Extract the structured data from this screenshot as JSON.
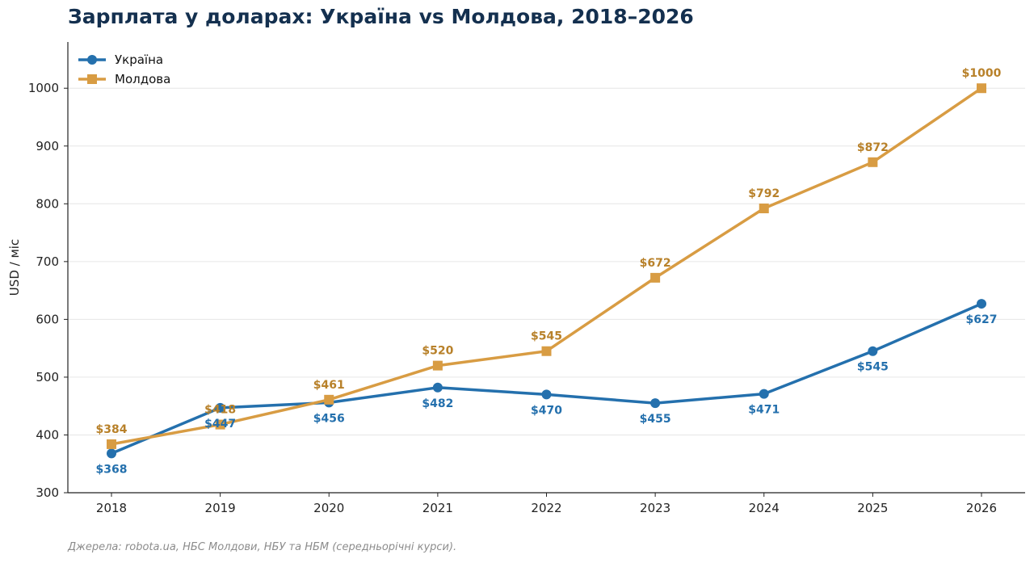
{
  "chart_data": {
    "type": "line",
    "title": "Зарплата у доларах: Україна vs Молдова, 2018–2026",
    "xlabel": "",
    "ylabel": "USD / міс",
    "x": [
      "2018",
      "2019",
      "2020",
      "2021",
      "2022",
      "2023",
      "2024",
      "2025",
      "2026"
    ],
    "ylim": [
      300,
      1080
    ],
    "yticks": [
      300,
      400,
      500,
      600,
      700,
      800,
      900,
      1000
    ],
    "grid": "horizontal",
    "legend": "top-left",
    "series": [
      {
        "name": "Україна",
        "color": "#2470ad",
        "marker": "circle",
        "label_position": "below",
        "values": [
          368,
          447,
          456,
          482,
          470,
          455,
          471,
          545,
          627
        ],
        "labels": [
          "$368",
          "$447",
          "$456",
          "$482",
          "$470",
          "$455",
          "$471",
          "$545",
          "$627"
        ]
      },
      {
        "name": "Молдова",
        "color": "#d89c43",
        "marker": "square",
        "label_color": "#b8812a",
        "label_position": "above",
        "values": [
          384,
          418,
          461,
          520,
          545,
          672,
          792,
          872,
          1000
        ],
        "labels": [
          "$384",
          "$418",
          "$461",
          "$520",
          "$545",
          "$672",
          "$792",
          "$872",
          "$1000"
        ]
      }
    ]
  },
  "source_note": "Джерела: robota.ua, НБС Молдови, НБУ та НБМ (середньорічні курси)."
}
